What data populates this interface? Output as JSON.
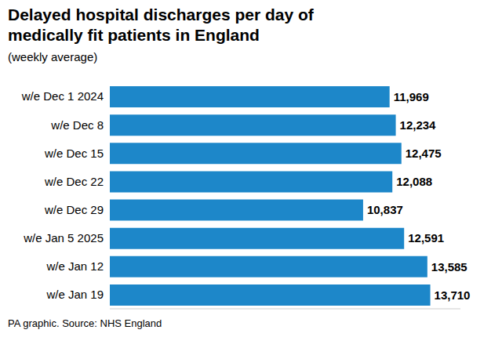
{
  "chart_data": {
    "type": "bar",
    "title": "Delayed hospital discharges per day of medically fit patients in England",
    "subtitle": "(weekly average)",
    "caption": "PA graphic. Source: NHS England",
    "orientation": "horizontal",
    "categories": [
      "w/e Dec 1 2024",
      "w/e Dec 8",
      "w/e Dec 15",
      "w/e Dec 22",
      "w/e Dec 29",
      "w/e Jan 5 2025",
      "w/e Jan 12",
      "w/e Jan 19"
    ],
    "values": [
      11969,
      12234,
      12475,
      12088,
      10837,
      12591,
      13585,
      13710
    ],
    "value_labels": [
      "11,969",
      "12,234",
      "12,475",
      "12,088",
      "10,837",
      "12,591",
      "13,585",
      "13,710"
    ],
    "color": "#1d87c9",
    "xlim": [
      0,
      15000
    ],
    "data_labels": true,
    "tick_labels": "y",
    "grid": false
  }
}
